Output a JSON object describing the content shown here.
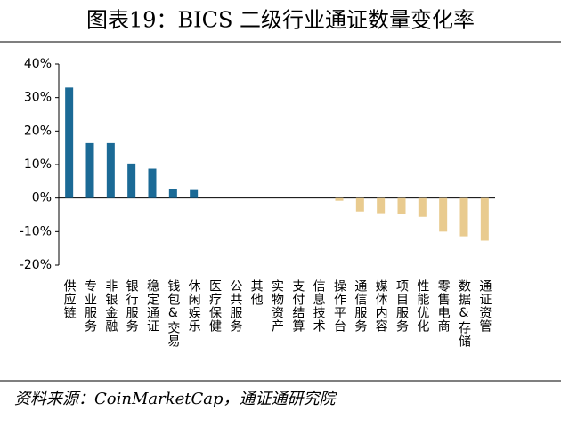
{
  "chart_data": {
    "type": "bar",
    "title": "图表19：BICS 二级行业通证数量变化率",
    "categories": [
      "供应链",
      "专业服务",
      "非银金融",
      "银行服务",
      "稳定通证",
      "钱包&交易",
      "休闲娱乐",
      "医疗保健",
      "公共服务",
      "其他",
      "实物资产",
      "支付结算",
      "信息技术",
      "操作平台",
      "通信服务",
      "媒体内容",
      "项目服务",
      "性能优化",
      "零售电商",
      "数据&存储",
      "通证资管"
    ],
    "values": [
      33,
      16.4,
      16.4,
      10.3,
      8.8,
      2.7,
      2.4,
      0,
      0,
      0,
      0,
      0,
      0,
      -0.8,
      -4,
      -4.5,
      -4.8,
      -5.6,
      -10,
      -11.4,
      -12.7
    ],
    "colors": {
      "positive": "#1b6a96",
      "negative": "#e9cb8f"
    },
    "ylim": [
      -20,
      40
    ],
    "yticks": [
      {
        "value": -20,
        "label": "-20%"
      },
      {
        "value": -10,
        "label": "-10%"
      },
      {
        "value": 0,
        "label": "0%"
      },
      {
        "value": 10,
        "label": "10%"
      },
      {
        "value": 20,
        "label": "20%"
      },
      {
        "value": 30,
        "label": "30%"
      },
      {
        "value": 40,
        "label": "40%"
      }
    ],
    "source": "资料来源：CoinMarketCap，通证通研究院"
  }
}
